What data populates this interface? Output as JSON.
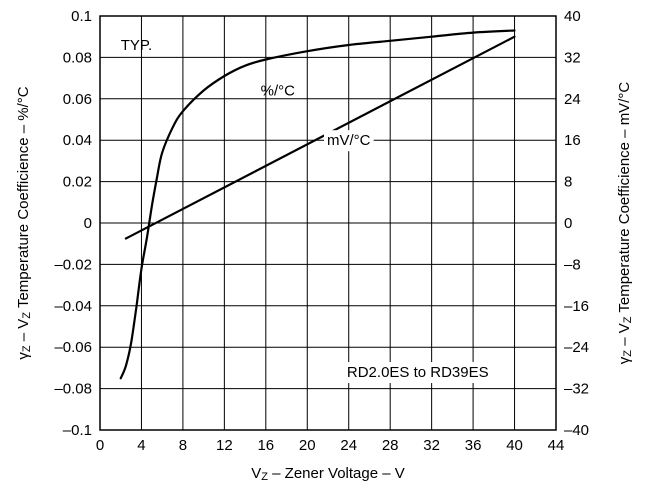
{
  "chart_data": {
    "type": "line",
    "x_axis": {
      "label_prefix": "V",
      "label_sub": "Z",
      "label_suffix": " – Zener Voltage – V",
      "range": [
        0,
        44
      ],
      "ticks": [
        0,
        4,
        8,
        12,
        16,
        20,
        24,
        28,
        32,
        36,
        40,
        44
      ],
      "tick_labels": [
        "0",
        "4",
        "8",
        "12",
        "16",
        "20",
        "24",
        "28",
        "32",
        "36",
        "40",
        "44"
      ]
    },
    "y_left": {
      "label_prefix": "γ",
      "label_sub1": "Z",
      "label_mid": " – V",
      "label_sub2": "Z",
      "label_suffix": " Temperature Coefficience – %/°C",
      "range": [
        -0.1,
        0.1
      ],
      "ticks": [
        -0.1,
        -0.08,
        -0.06,
        -0.04,
        -0.02,
        0,
        0.02,
        0.04,
        0.06,
        0.08,
        0.1
      ],
      "tick_labels": [
        "–0.1",
        "–0.08",
        "–0.06",
        "–0.04",
        "–0.02",
        "0",
        "0.02",
        "0.04",
        "0.06",
        "0.08",
        "0.1"
      ]
    },
    "y_right": {
      "label_prefix": "γ",
      "label_sub1": "Z",
      "label_mid": " – V",
      "label_sub2": "Z",
      "label_suffix": " Temperature Coefficience – mV/°C",
      "range": [
        -40,
        40
      ],
      "ticks": [
        -40,
        -32,
        -24,
        -16,
        -8,
        0,
        8,
        16,
        24,
        32,
        40
      ],
      "tick_labels": [
        "–40",
        "–32",
        "–24",
        "–16",
        "–8",
        "0",
        "8",
        "16",
        "24",
        "32",
        "40"
      ]
    },
    "grid": true,
    "series": [
      {
        "name": "%/°C",
        "axis": "left",
        "x": [
          2,
          2.5,
          3,
          3.5,
          4,
          4.5,
          5,
          5.5,
          6,
          7,
          8,
          10,
          12,
          14,
          16,
          20,
          24,
          28,
          32,
          36,
          40
        ],
        "y": [
          -0.075,
          -0.069,
          -0.058,
          -0.041,
          -0.022,
          -0.008,
          0.008,
          0.022,
          0.034,
          0.046,
          0.054,
          0.064,
          0.071,
          0.076,
          0.079,
          0.083,
          0.086,
          0.088,
          0.09,
          0.092,
          0.093
        ]
      },
      {
        "name": "mV/°C",
        "axis": "right",
        "x": [
          2.5,
          40
        ],
        "y": [
          -3,
          36
        ]
      }
    ],
    "annotations": [
      {
        "text": "TYP.",
        "x": 2,
        "y": 0.086,
        "axis": "left",
        "anchor": "start"
      },
      {
        "text": "%/°C",
        "x": 15.5,
        "y": 0.064,
        "axis": "left",
        "anchor": "start"
      },
      {
        "text": "mV/°C",
        "x": 24,
        "y": 16,
        "axis": "right",
        "anchor": "middle",
        "boxed": true
      },
      {
        "text": "RD2.0ES to RD39ES",
        "x": 37.5,
        "y": -0.072,
        "axis": "left",
        "anchor": "end",
        "boxed": true
      }
    ]
  }
}
